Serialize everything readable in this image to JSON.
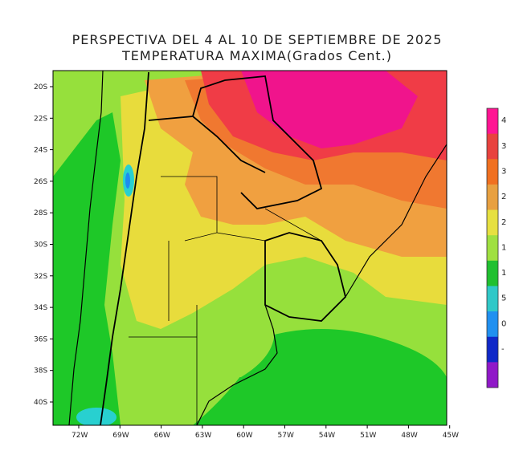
{
  "title": {
    "line1": "PERSPECTIVA DEL 4 AL 10 DE SEPTIEMBRE DE 2025",
    "line2": "TEMPERATURA MAXIMA(Grados Cent.)"
  },
  "axes": {
    "lat_labels": [
      "20S",
      "22S",
      "24S",
      "26S",
      "28S",
      "30S",
      "32S",
      "34S",
      "36S",
      "38S",
      "40S"
    ],
    "lon_labels": [
      "72W",
      "69W",
      "66W",
      "63W",
      "60W",
      "57W",
      "54W",
      "51W",
      "48W",
      "45W"
    ]
  },
  "colorbar": {
    "labels": [
      "4",
      "3",
      "3",
      "2",
      "2",
      "1",
      "1",
      "5",
      "0",
      "-"
    ],
    "colors": [
      "#ff1493",
      "#e8423e",
      "#f07020",
      "#e8a040",
      "#e6e040",
      "#9fe040",
      "#20c030",
      "#30c8c8",
      "#2090f0",
      "#1028c8",
      "#9018c8"
    ]
  },
  "palette": {
    "magenta": "#f0148c",
    "red": "#f03c46",
    "orange": "#f07830",
    "orange_light": "#f0a040",
    "yellow": "#e8dc3c",
    "yellow_green": "#c8e040",
    "light_green": "#96e03c",
    "green": "#1ec828",
    "cyan": "#28d0d0",
    "blue": "#1e8cf0"
  }
}
